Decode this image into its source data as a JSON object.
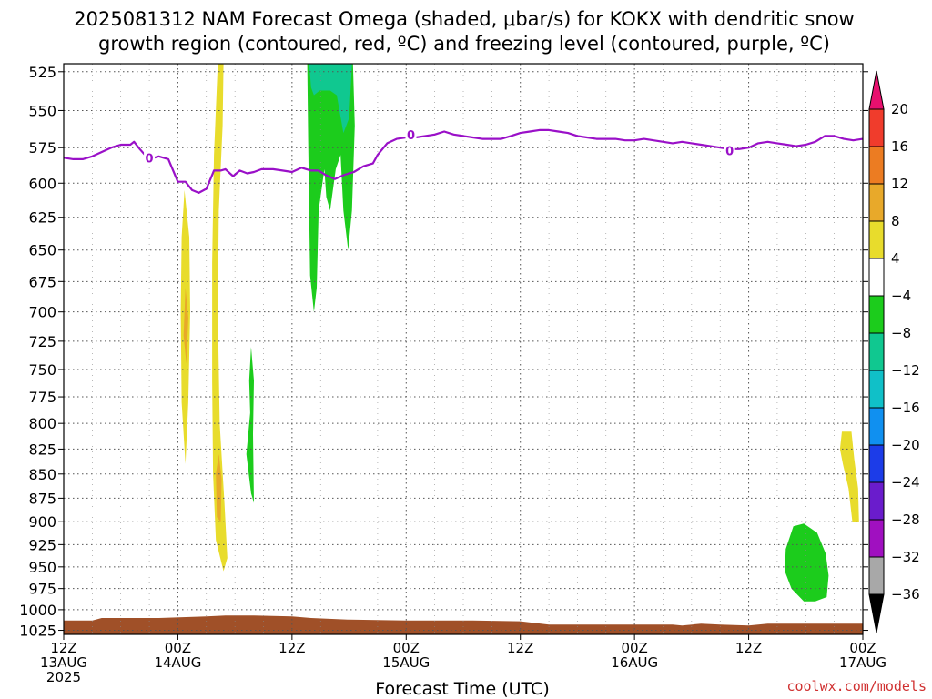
{
  "chart_data": {
    "type": "heatmap",
    "title_lines": [
      "2025081312 NAM Forecast Omega (shaded, μbar/s) for KOKX with dendritic snow",
      "growth region (contoured, red, ºC) and freezing level (contoured, purple, ºC)"
    ],
    "xlabel": "Forecast Time (UTC)",
    "credit": "coolwx.com/models",
    "x_unit": "forecast hour from 2025-08-13 12Z",
    "xlim": [
      0,
      84
    ],
    "x_ticks": [
      {
        "x": 0,
        "lines": [
          "12Z",
          "13AUG",
          "2025"
        ]
      },
      {
        "x": 12,
        "lines": [
          "00Z",
          "14AUG"
        ]
      },
      {
        "x": 24,
        "lines": [
          "12Z"
        ]
      },
      {
        "x": 36,
        "lines": [
          "00Z",
          "15AUG"
        ]
      },
      {
        "x": 48,
        "lines": [
          "12Z"
        ]
      },
      {
        "x": 60,
        "lines": [
          "00Z",
          "16AUG"
        ]
      },
      {
        "x": 72,
        "lines": [
          "12Z"
        ]
      },
      {
        "x": 84,
        "lines": [
          "00Z",
          "17AUG"
        ]
      }
    ],
    "y_unit": "pressure (hPa)",
    "y_scale": "log-pressure",
    "ylim": [
      1030,
      520
    ],
    "y_ticks": [
      525,
      550,
      575,
      600,
      625,
      650,
      675,
      700,
      725,
      750,
      775,
      800,
      825,
      850,
      875,
      900,
      925,
      950,
      975,
      1000,
      1025
    ],
    "grid": true,
    "colorbar": {
      "position": "right",
      "labels": [
        "20",
        "16",
        "12",
        "8",
        "4",
        "−4",
        "−8",
        "−12",
        "−16",
        "−20",
        "−24",
        "−28",
        "−32",
        "−36"
      ],
      "bins": [
        {
          "lo": 20,
          "hi": null,
          "color": "#e8106e"
        },
        {
          "lo": 16,
          "hi": 20,
          "color": "#f03c2c"
        },
        {
          "lo": 12,
          "hi": 16,
          "color": "#ec7c22"
        },
        {
          "lo": 8,
          "hi": 12,
          "color": "#e8a92a"
        },
        {
          "lo": 4,
          "hi": 8,
          "color": "#e8dc2c"
        },
        {
          "lo": -4,
          "hi": 4,
          "color": "#ffffff"
        },
        {
          "lo": -8,
          "hi": -4,
          "color": "#1ccc1c"
        },
        {
          "lo": -12,
          "hi": -8,
          "color": "#10c890"
        },
        {
          "lo": -16,
          "hi": -12,
          "color": "#10c0c8"
        },
        {
          "lo": -20,
          "hi": -16,
          "color": "#1090f0"
        },
        {
          "lo": -24,
          "hi": -20,
          "color": "#1c3ce8"
        },
        {
          "lo": -28,
          "hi": -24,
          "color": "#6a1ccc"
        },
        {
          "lo": -32,
          "hi": -28,
          "color": "#a010c0"
        },
        {
          "lo": -36,
          "hi": -32,
          "color": "#a8a8a8"
        },
        {
          "lo": null,
          "hi": -36,
          "color": "#000000"
        }
      ]
    },
    "omega_regions": [
      {
        "name": "yellow-plume-a",
        "value_bin": "4 to 8",
        "color": "#e8dc2c",
        "points": [
          [
            12.7,
            605
          ],
          [
            13.2,
            640
          ],
          [
            13.3,
            700
          ],
          [
            13.1,
            780
          ],
          [
            12.8,
            840
          ],
          [
            12.4,
            780
          ],
          [
            12.3,
            700
          ],
          [
            12.4,
            640
          ]
        ]
      },
      {
        "name": "orange-core-a",
        "value_bin": "8 to 12",
        "color": "#e8a92a",
        "points": [
          [
            12.8,
            680
          ],
          [
            13.1,
            705
          ],
          [
            12.9,
            745
          ],
          [
            12.6,
            720
          ]
        ]
      },
      {
        "name": "yellow-plume-b",
        "value_bin": "4 to 8",
        "color": "#e8dc2c",
        "points": [
          [
            16.2,
            520
          ],
          [
            16.8,
            520
          ],
          [
            16.7,
            560
          ],
          [
            16.3,
            620
          ],
          [
            16.2,
            700
          ],
          [
            16.4,
            800
          ],
          [
            16.9,
            880
          ],
          [
            17.2,
            940
          ],
          [
            16.8,
            955
          ],
          [
            16.0,
            920
          ],
          [
            15.7,
            850
          ],
          [
            15.6,
            760
          ],
          [
            15.6,
            660
          ],
          [
            15.8,
            580
          ]
        ]
      },
      {
        "name": "orange-core-b",
        "value_bin": "8 to 12",
        "color": "#e8a92a",
        "points": [
          [
            16.3,
            830
          ],
          [
            16.6,
            855
          ],
          [
            16.5,
            900
          ],
          [
            16.1,
            895
          ],
          [
            16.0,
            850
          ]
        ]
      },
      {
        "name": "green-streak",
        "value_bin": "-8 to -4",
        "color": "#1ccc1c",
        "points": [
          [
            19.7,
            730
          ],
          [
            20.0,
            760
          ],
          [
            19.9,
            810
          ],
          [
            20.0,
            880
          ],
          [
            19.7,
            870
          ],
          [
            19.2,
            830
          ],
          [
            19.6,
            790
          ],
          [
            19.5,
            760
          ]
        ]
      },
      {
        "name": "green-column",
        "value_bin": "-8 to -4",
        "color": "#1ccc1c",
        "points": [
          [
            25.6,
            520
          ],
          [
            30.4,
            520
          ],
          [
            30.6,
            560
          ],
          [
            30.3,
            620
          ],
          [
            29.9,
            650
          ],
          [
            29.4,
            620
          ],
          [
            29.1,
            580
          ],
          [
            28.6,
            590
          ],
          [
            28.0,
            620
          ],
          [
            27.6,
            610
          ],
          [
            27.4,
            590
          ],
          [
            26.8,
            620
          ],
          [
            26.6,
            680
          ],
          [
            26.3,
            700
          ],
          [
            25.9,
            670
          ],
          [
            25.8,
            620
          ],
          [
            25.7,
            570
          ]
        ]
      },
      {
        "name": "teal-cap",
        "value_bin": "-12 to -8",
        "color": "#10c890",
        "points": [
          [
            25.8,
            520
          ],
          [
            30.3,
            520
          ],
          [
            30.0,
            555
          ],
          [
            29.4,
            565
          ],
          [
            28.7,
            540
          ],
          [
            28.0,
            537
          ],
          [
            27.5,
            537
          ],
          [
            26.9,
            537
          ],
          [
            26.3,
            540
          ],
          [
            26.0,
            535
          ]
        ]
      },
      {
        "name": "yellow-late",
        "value_bin": "4 to 8",
        "color": "#e8dc2c",
        "points": [
          [
            81.8,
            808
          ],
          [
            82.8,
            808
          ],
          [
            83.1,
            835
          ],
          [
            83.5,
            865
          ],
          [
            83.6,
            900
          ],
          [
            82.9,
            900
          ],
          [
            82.5,
            865
          ],
          [
            81.9,
            840
          ],
          [
            81.6,
            825
          ]
        ]
      },
      {
        "name": "green-late",
        "value_bin": "-8 to -4",
        "color": "#1ccc1c",
        "points": [
          [
            76.7,
            905
          ],
          [
            77.8,
            902
          ],
          [
            79.2,
            912
          ],
          [
            80.1,
            935
          ],
          [
            80.4,
            960
          ],
          [
            80.2,
            985
          ],
          [
            79.0,
            990
          ],
          [
            77.8,
            990
          ],
          [
            76.5,
            975
          ],
          [
            75.8,
            955
          ],
          [
            75.9,
            930
          ]
        ]
      }
    ],
    "freezing_level": {
      "label": "0",
      "color": "#9a10c8",
      "label_positions": [
        [
          9.0,
          582
        ],
        [
          36.5,
          566
        ],
        [
          70.0,
          577
        ]
      ],
      "points": [
        [
          0,
          582
        ],
        [
          1,
          583
        ],
        [
          2,
          583
        ],
        [
          3,
          581
        ],
        [
          4,
          578
        ],
        [
          5,
          575
        ],
        [
          6,
          573
        ],
        [
          7,
          573
        ],
        [
          7.4,
          571
        ],
        [
          8,
          576
        ],
        [
          8.8,
          582
        ],
        [
          9.5,
          582
        ],
        [
          10,
          581
        ],
        [
          11,
          583
        ],
        [
          12,
          599
        ],
        [
          12.8,
          599
        ],
        [
          13.5,
          605
        ],
        [
          14.2,
          607
        ],
        [
          15,
          604
        ],
        [
          15.8,
          591
        ],
        [
          16.5,
          591
        ],
        [
          17,
          590
        ],
        [
          17.8,
          595
        ],
        [
          18.5,
          591
        ],
        [
          19.3,
          593
        ],
        [
          20,
          592
        ],
        [
          20.8,
          590
        ],
        [
          22,
          590
        ],
        [
          23,
          591
        ],
        [
          24,
          592
        ],
        [
          25,
          589
        ],
        [
          26,
          591
        ],
        [
          26.8,
          591
        ],
        [
          27.5,
          594
        ],
        [
          28.5,
          597
        ],
        [
          29.5,
          594
        ],
        [
          30.5,
          592
        ],
        [
          31.5,
          588
        ],
        [
          32.5,
          586
        ],
        [
          33,
          580
        ],
        [
          34,
          572
        ],
        [
          35,
          569
        ],
        [
          36,
          568
        ],
        [
          37,
          568
        ],
        [
          38,
          567
        ],
        [
          39,
          566
        ],
        [
          40,
          564
        ],
        [
          41,
          566
        ],
        [
          42,
          567
        ],
        [
          43,
          568
        ],
        [
          44,
          569
        ],
        [
          45,
          569
        ],
        [
          46,
          569
        ],
        [
          47,
          567
        ],
        [
          48,
          565
        ],
        [
          49,
          564
        ],
        [
          50,
          563
        ],
        [
          51,
          563
        ],
        [
          52,
          564
        ],
        [
          53,
          565
        ],
        [
          54,
          567
        ],
        [
          55,
          568
        ],
        [
          56,
          569
        ],
        [
          57,
          569
        ],
        [
          58,
          569
        ],
        [
          59,
          570
        ],
        [
          60,
          570
        ],
        [
          61,
          569
        ],
        [
          62,
          570
        ],
        [
          63,
          571
        ],
        [
          64,
          572
        ],
        [
          65,
          571
        ],
        [
          66,
          572
        ],
        [
          67,
          573
        ],
        [
          68,
          574
        ],
        [
          69,
          575
        ],
        [
          70,
          576
        ],
        [
          71,
          576
        ],
        [
          72,
          575
        ],
        [
          73,
          572
        ],
        [
          74,
          571
        ],
        [
          75,
          572
        ],
        [
          76,
          573
        ],
        [
          77,
          574
        ],
        [
          78,
          573
        ],
        [
          79,
          571
        ],
        [
          80,
          567
        ],
        [
          81,
          567
        ],
        [
          82,
          569
        ],
        [
          83,
          570
        ],
        [
          84,
          569
        ]
      ]
    },
    "surface": {
      "color": "#a05028",
      "points": [
        [
          0,
          1013
        ],
        [
          3,
          1013
        ],
        [
          4,
          1010
        ],
        [
          10,
          1010
        ],
        [
          15,
          1008
        ],
        [
          17,
          1007
        ],
        [
          20,
          1007
        ],
        [
          24,
          1008
        ],
        [
          26,
          1010
        ],
        [
          30,
          1012
        ],
        [
          36,
          1013
        ],
        [
          43,
          1013
        ],
        [
          48,
          1014
        ],
        [
          51,
          1018
        ],
        [
          60,
          1018
        ],
        [
          64,
          1018
        ],
        [
          65,
          1019
        ],
        [
          67,
          1017
        ],
        [
          69,
          1018
        ],
        [
          72,
          1019
        ],
        [
          74,
          1017
        ],
        [
          78,
          1017
        ],
        [
          84,
          1017
        ]
      ]
    }
  }
}
